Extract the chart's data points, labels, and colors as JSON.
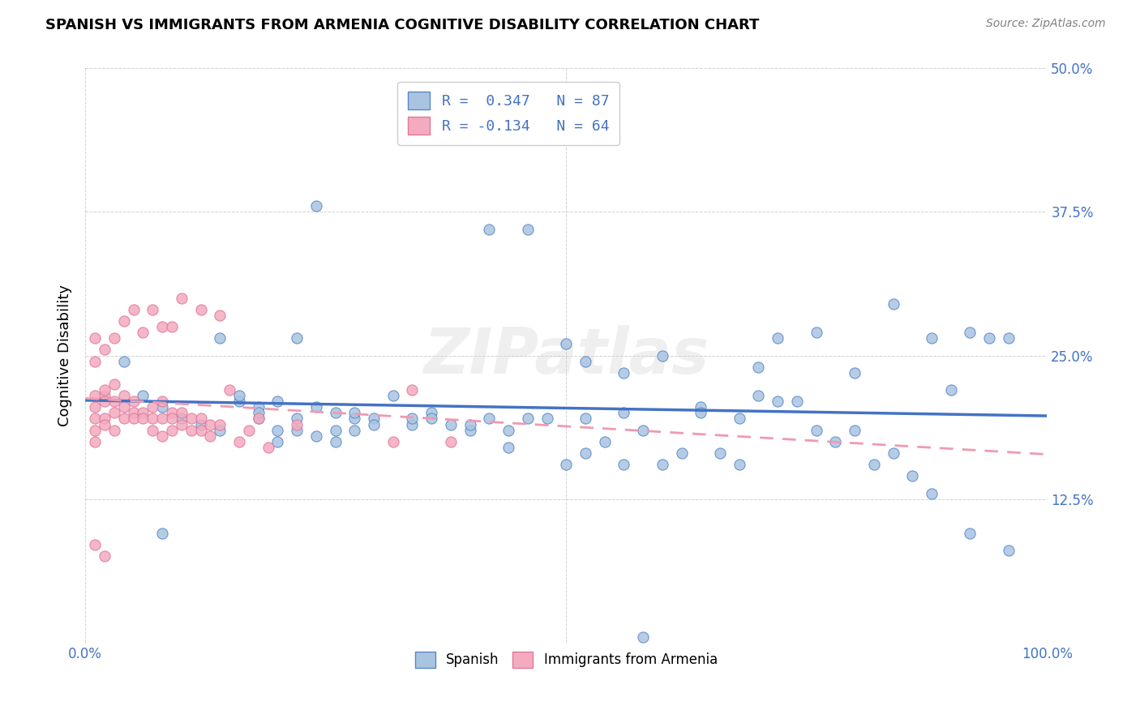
{
  "title": "SPANISH VS IMMIGRANTS FROM ARMENIA COGNITIVE DISABILITY CORRELATION CHART",
  "source": "Source: ZipAtlas.com",
  "ylabel": "Cognitive Disability",
  "xlim": [
    0,
    1.0
  ],
  "ylim": [
    0,
    0.5
  ],
  "blue_R": 0.347,
  "blue_N": 87,
  "pink_R": -0.134,
  "pink_N": 64,
  "blue_color": "#aac4e0",
  "pink_color": "#f4aabf",
  "blue_edge_color": "#5588cc",
  "pink_edge_color": "#e07898",
  "blue_line_color": "#4472c4",
  "pink_line_color": "#f09ab0",
  "legend_label_blue": "R =  0.347   N = 87",
  "legend_label_pink": "R = -0.134   N = 64",
  "watermark": "ZIPatlas",
  "bottom_legend_blue": "Spanish",
  "bottom_legend_pink": "Immigrants from Armenia",
  "blue_x": [
    0.04,
    0.06,
    0.08,
    0.08,
    0.1,
    0.12,
    0.14,
    0.16,
    0.18,
    0.18,
    0.2,
    0.2,
    0.22,
    0.22,
    0.24,
    0.24,
    0.26,
    0.26,
    0.28,
    0.28,
    0.3,
    0.32,
    0.34,
    0.34,
    0.36,
    0.36,
    0.38,
    0.38,
    0.4,
    0.4,
    0.42,
    0.42,
    0.44,
    0.44,
    0.46,
    0.46,
    0.48,
    0.5,
    0.5,
    0.52,
    0.52,
    0.54,
    0.56,
    0.56,
    0.58,
    0.6,
    0.6,
    0.62,
    0.64,
    0.64,
    0.66,
    0.68,
    0.68,
    0.7,
    0.7,
    0.72,
    0.72,
    0.74,
    0.76,
    0.76,
    0.78,
    0.8,
    0.8,
    0.82,
    0.84,
    0.84,
    0.86,
    0.88,
    0.88,
    0.9,
    0.92,
    0.92,
    0.94,
    0.96,
    0.96,
    0.14,
    0.16,
    0.18,
    0.2,
    0.22,
    0.24,
    0.26,
    0.28,
    0.3,
    0.52,
    0.56,
    0.58
  ],
  "blue_y": [
    0.245,
    0.215,
    0.205,
    0.095,
    0.195,
    0.19,
    0.185,
    0.21,
    0.195,
    0.205,
    0.185,
    0.21,
    0.185,
    0.195,
    0.18,
    0.205,
    0.185,
    0.2,
    0.185,
    0.195,
    0.195,
    0.215,
    0.19,
    0.195,
    0.2,
    0.195,
    0.19,
    0.44,
    0.185,
    0.19,
    0.195,
    0.36,
    0.185,
    0.17,
    0.195,
    0.36,
    0.195,
    0.155,
    0.26,
    0.245,
    0.195,
    0.175,
    0.2,
    0.155,
    0.185,
    0.155,
    0.25,
    0.165,
    0.205,
    0.2,
    0.165,
    0.155,
    0.195,
    0.215,
    0.24,
    0.21,
    0.265,
    0.21,
    0.185,
    0.27,
    0.175,
    0.185,
    0.235,
    0.155,
    0.165,
    0.295,
    0.145,
    0.13,
    0.265,
    0.22,
    0.095,
    0.27,
    0.265,
    0.265,
    0.08,
    0.265,
    0.215,
    0.2,
    0.175,
    0.265,
    0.38,
    0.175,
    0.2,
    0.19,
    0.165,
    0.235,
    0.005
  ],
  "pink_x": [
    0.01,
    0.01,
    0.01,
    0.01,
    0.01,
    0.01,
    0.02,
    0.02,
    0.02,
    0.02,
    0.02,
    0.03,
    0.03,
    0.03,
    0.03,
    0.04,
    0.04,
    0.04,
    0.05,
    0.05,
    0.05,
    0.06,
    0.06,
    0.07,
    0.07,
    0.07,
    0.08,
    0.08,
    0.08,
    0.09,
    0.09,
    0.09,
    0.1,
    0.1,
    0.11,
    0.11,
    0.12,
    0.12,
    0.13,
    0.13,
    0.14,
    0.15,
    0.16,
    0.17,
    0.18,
    0.19,
    0.22,
    0.32,
    0.34,
    0.38,
    0.01,
    0.02,
    0.03,
    0.04,
    0.05,
    0.06,
    0.07,
    0.08,
    0.09,
    0.1,
    0.12,
    0.14,
    0.01,
    0.02
  ],
  "pink_y": [
    0.195,
    0.205,
    0.215,
    0.185,
    0.175,
    0.245,
    0.215,
    0.22,
    0.21,
    0.195,
    0.19,
    0.225,
    0.21,
    0.2,
    0.185,
    0.215,
    0.205,
    0.195,
    0.21,
    0.2,
    0.195,
    0.2,
    0.195,
    0.205,
    0.195,
    0.185,
    0.21,
    0.195,
    0.18,
    0.2,
    0.195,
    0.185,
    0.2,
    0.19,
    0.195,
    0.185,
    0.195,
    0.185,
    0.19,
    0.18,
    0.19,
    0.22,
    0.175,
    0.185,
    0.195,
    0.17,
    0.19,
    0.175,
    0.22,
    0.175,
    0.265,
    0.255,
    0.265,
    0.28,
    0.29,
    0.27,
    0.29,
    0.275,
    0.275,
    0.3,
    0.29,
    0.285,
    0.085,
    0.075
  ]
}
